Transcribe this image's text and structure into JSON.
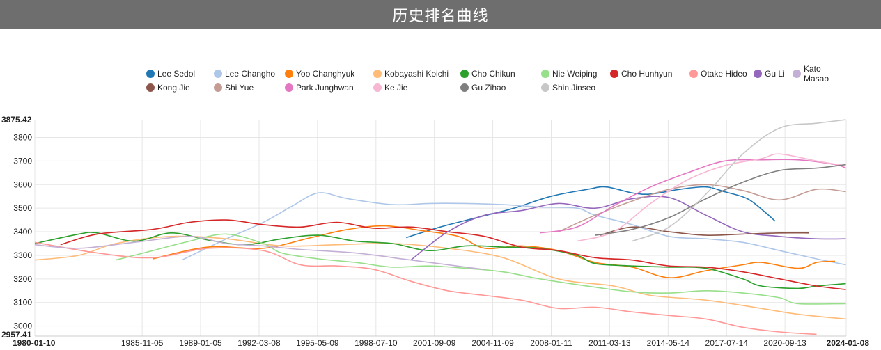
{
  "page": {
    "title": "历史排名曲线"
  },
  "chart_data": {
    "type": "line",
    "title": "历史排名曲线",
    "xlabel": "",
    "ylabel": "",
    "grid": true,
    "legend_position": "top",
    "x_start": "1980-01-10",
    "x_end": "2024-01-08",
    "x_ticks": [
      "1980-01-10",
      "1985-11-05",
      "1989-01-05",
      "1992-03-08",
      "1995-05-09",
      "1998-07-10",
      "2001-09-09",
      "2004-11-09",
      "2008-01-11",
      "2011-03-13",
      "2014-05-14",
      "2017-07-14",
      "2020-09-13",
      "2024-01-08"
    ],
    "y_ticks": [
      3000,
      3100,
      3200,
      3300,
      3400,
      3500,
      3600,
      3700,
      3800
    ],
    "y_min_label": "2957.41",
    "y_max_label": "3875.42",
    "ylim": [
      2957.41,
      3875.42
    ],
    "series": [
      {
        "name": "Lee Sedol",
        "color": "#1f77b4",
        "points": [
          [
            "2000-03-01",
            3375
          ],
          [
            "2002-01-01",
            3420
          ],
          [
            "2004-01-01",
            3460
          ],
          [
            "2006-01-01",
            3500
          ],
          [
            "2008-01-01",
            3550
          ],
          [
            "2010-01-01",
            3580
          ],
          [
            "2011-01-01",
            3590
          ],
          [
            "2012-06-01",
            3565
          ],
          [
            "2013-06-01",
            3560
          ],
          [
            "2015-01-01",
            3580
          ],
          [
            "2016-06-01",
            3590
          ],
          [
            "2017-06-01",
            3570
          ],
          [
            "2018-09-01",
            3540
          ],
          [
            "2019-09-01",
            3480
          ],
          [
            "2020-03-01",
            3445
          ]
        ]
      },
      {
        "name": "Lee Changho",
        "color": "#aec7e8",
        "points": [
          [
            "1988-01-01",
            3280
          ],
          [
            "1990-06-01",
            3370
          ],
          [
            "1992-06-01",
            3440
          ],
          [
            "1994-01-01",
            3510
          ],
          [
            "1995-06-01",
            3565
          ],
          [
            "1997-01-01",
            3540
          ],
          [
            "1999-06-01",
            3515
          ],
          [
            "2001-06-01",
            3520
          ],
          [
            "2003-06-01",
            3520
          ],
          [
            "2005-06-01",
            3515
          ],
          [
            "2007-06-01",
            3505
          ],
          [
            "2009-06-01",
            3500
          ],
          [
            "2010-06-01",
            3470
          ],
          [
            "2012-06-01",
            3430
          ],
          [
            "2014-06-01",
            3380
          ],
          [
            "2016-06-01",
            3370
          ],
          [
            "2018-06-01",
            3355
          ],
          [
            "2020-06-01",
            3320
          ],
          [
            "2022-06-01",
            3285
          ],
          [
            "2024-01-01",
            3260
          ]
        ]
      },
      {
        "name": "Yoo Changhyuk",
        "color": "#ff7f0e",
        "points": [
          [
            "1986-06-01",
            3285
          ],
          [
            "1989-06-01",
            3335
          ],
          [
            "1992-06-01",
            3330
          ],
          [
            "1995-01-01",
            3375
          ],
          [
            "1997-01-01",
            3410
          ],
          [
            "1999-01-01",
            3425
          ],
          [
            "2001-01-01",
            3405
          ],
          [
            "2003-01-01",
            3380
          ],
          [
            "2004-06-01",
            3330
          ],
          [
            "2006-06-01",
            3340
          ],
          [
            "2008-06-01",
            3320
          ],
          [
            "2010-06-01",
            3270
          ],
          [
            "2012-06-01",
            3250
          ],
          [
            "2014-06-01",
            3205
          ],
          [
            "2016-06-01",
            3235
          ],
          [
            "2018-06-01",
            3260
          ],
          [
            "2019-06-01",
            3270
          ],
          [
            "2021-06-01",
            3245
          ],
          [
            "2022-06-01",
            3270
          ],
          [
            "2023-06-01",
            3275
          ]
        ]
      },
      {
        "name": "Kobayashi Koichi",
        "color": "#ffbb78",
        "points": [
          [
            "1980-01-10",
            3280
          ],
          [
            "1982-06-01",
            3300
          ],
          [
            "1984-06-01",
            3350
          ],
          [
            "1987-06-01",
            3380
          ],
          [
            "1990-06-01",
            3370
          ],
          [
            "1993-06-01",
            3340
          ],
          [
            "1996-06-01",
            3345
          ],
          [
            "1999-06-01",
            3350
          ],
          [
            "2002-06-01",
            3330
          ],
          [
            "2005-06-01",
            3290
          ],
          [
            "2008-06-01",
            3200
          ],
          [
            "2011-06-01",
            3170
          ],
          [
            "2013-06-01",
            3130
          ],
          [
            "2016-06-01",
            3110
          ],
          [
            "2019-06-01",
            3075
          ],
          [
            "2021-06-01",
            3050
          ],
          [
            "2024-01-01",
            3030
          ]
        ]
      },
      {
        "name": "Cho Chikun",
        "color": "#2ca02c",
        "points": [
          [
            "1980-01-10",
            3350
          ],
          [
            "1982-06-01",
            3390
          ],
          [
            "1983-06-01",
            3395
          ],
          [
            "1985-06-01",
            3360
          ],
          [
            "1987-06-01",
            3395
          ],
          [
            "1989-06-01",
            3365
          ],
          [
            "1991-06-01",
            3345
          ],
          [
            "1993-06-01",
            3370
          ],
          [
            "1995-06-01",
            3385
          ],
          [
            "1997-06-01",
            3360
          ],
          [
            "1999-06-01",
            3350
          ],
          [
            "2001-06-01",
            3320
          ],
          [
            "2003-06-01",
            3340
          ],
          [
            "2005-06-01",
            3335
          ],
          [
            "2007-06-01",
            3330
          ],
          [
            "2009-06-01",
            3300
          ],
          [
            "2010-06-01",
            3265
          ],
          [
            "2012-06-01",
            3255
          ],
          [
            "2014-06-01",
            3250
          ],
          [
            "2016-06-01",
            3245
          ],
          [
            "2018-06-01",
            3200
          ],
          [
            "2019-06-01",
            3170
          ],
          [
            "2021-06-01",
            3160
          ],
          [
            "2022-06-01",
            3170
          ],
          [
            "2024-01-01",
            3180
          ]
        ]
      },
      {
        "name": "Nie Weiping",
        "color": "#98df8a",
        "points": [
          [
            "1984-06-01",
            3280
          ],
          [
            "1986-06-01",
            3320
          ],
          [
            "1988-06-01",
            3360
          ],
          [
            "1990-06-01",
            3390
          ],
          [
            "1992-06-01",
            3350
          ],
          [
            "1993-06-01",
            3310
          ],
          [
            "1995-06-01",
            3285
          ],
          [
            "1997-06-01",
            3270
          ],
          [
            "1999-06-01",
            3250
          ],
          [
            "2001-06-01",
            3255
          ],
          [
            "2003-06-01",
            3245
          ],
          [
            "2005-06-01",
            3230
          ],
          [
            "2007-06-01",
            3200
          ],
          [
            "2010-06-01",
            3165
          ],
          [
            "2012-06-01",
            3145
          ],
          [
            "2014-06-01",
            3140
          ],
          [
            "2016-06-01",
            3150
          ],
          [
            "2018-06-01",
            3140
          ],
          [
            "2020-06-01",
            3120
          ],
          [
            "2021-06-01",
            3095
          ],
          [
            "2024-01-01",
            3095
          ]
        ]
      },
      {
        "name": "Cho Hunhyun",
        "color": "#d62728",
        "points": [
          [
            "1981-06-01",
            3345
          ],
          [
            "1983-06-01",
            3390
          ],
          [
            "1986-06-01",
            3410
          ],
          [
            "1988-06-01",
            3440
          ],
          [
            "1990-06-01",
            3450
          ],
          [
            "1992-06-01",
            3430
          ],
          [
            "1994-06-01",
            3420
          ],
          [
            "1996-06-01",
            3440
          ],
          [
            "1998-06-01",
            3415
          ],
          [
            "2000-06-01",
            3420
          ],
          [
            "2002-06-01",
            3400
          ],
          [
            "2004-06-01",
            3380
          ],
          [
            "2006-06-01",
            3335
          ],
          [
            "2008-06-01",
            3320
          ],
          [
            "2010-06-01",
            3290
          ],
          [
            "2012-06-01",
            3280
          ],
          [
            "2014-06-01",
            3255
          ],
          [
            "2016-06-01",
            3250
          ],
          [
            "2018-06-01",
            3230
          ],
          [
            "2020-06-01",
            3200
          ],
          [
            "2022-06-01",
            3170
          ],
          [
            "2024-01-01",
            3155
          ]
        ]
      },
      {
        "name": "Otake Hideo",
        "color": "#ff9896",
        "points": [
          [
            "1980-01-10",
            3355
          ],
          [
            "1983-06-01",
            3310
          ],
          [
            "1986-06-01",
            3290
          ],
          [
            "1989-06-01",
            3330
          ],
          [
            "1992-06-01",
            3320
          ],
          [
            "1994-06-01",
            3260
          ],
          [
            "1996-06-01",
            3255
          ],
          [
            "1998-06-01",
            3240
          ],
          [
            "2000-06-01",
            3190
          ],
          [
            "2002-06-01",
            3150
          ],
          [
            "2004-06-01",
            3130
          ],
          [
            "2006-06-01",
            3110
          ],
          [
            "2008-06-01",
            3075
          ],
          [
            "2010-06-01",
            3080
          ],
          [
            "2012-06-01",
            3060
          ],
          [
            "2014-06-01",
            3045
          ],
          [
            "2016-06-01",
            3030
          ],
          [
            "2018-06-01",
            2995
          ],
          [
            "2020-06-01",
            2975
          ],
          [
            "2022-06-01",
            2965
          ]
        ]
      },
      {
        "name": "Gu Li",
        "color": "#9467bd",
        "points": [
          [
            "2000-06-01",
            3280
          ],
          [
            "2002-06-01",
            3400
          ],
          [
            "2004-06-01",
            3470
          ],
          [
            "2006-06-01",
            3490
          ],
          [
            "2008-06-01",
            3520
          ],
          [
            "2010-06-01",
            3500
          ],
          [
            "2012-06-01",
            3540
          ],
          [
            "2014-06-01",
            3545
          ],
          [
            "2016-06-01",
            3470
          ],
          [
            "2018-06-01",
            3400
          ],
          [
            "2020-06-01",
            3380
          ],
          [
            "2022-06-01",
            3370
          ],
          [
            "2024-01-01",
            3370
          ]
        ]
      },
      {
        "name": "Kato Masao",
        "color": "#c5b0d5",
        "points": [
          [
            "1980-01-10",
            3345
          ],
          [
            "1982-06-01",
            3330
          ],
          [
            "1985-06-01",
            3355
          ],
          [
            "1988-06-01",
            3380
          ],
          [
            "1990-06-01",
            3350
          ],
          [
            "1992-06-01",
            3340
          ],
          [
            "1994-06-01",
            3325
          ],
          [
            "1997-06-01",
            3310
          ],
          [
            "2000-06-01",
            3280
          ],
          [
            "2003-06-01",
            3250
          ],
          [
            "2004-06-01",
            3240
          ]
        ]
      },
      {
        "name": "Kong Jie",
        "color": "#8c564b",
        "points": [
          [
            "2010-09-01",
            3385
          ],
          [
            "2012-06-01",
            3420
          ],
          [
            "2014-06-01",
            3400
          ],
          [
            "2016-06-01",
            3385
          ],
          [
            "2018-06-01",
            3390
          ],
          [
            "2020-06-01",
            3395
          ],
          [
            "2022-01-01",
            3395
          ]
        ]
      },
      {
        "name": "Shi Yue",
        "color": "#c49c94",
        "points": [
          [
            "2008-06-01",
            3400
          ],
          [
            "2010-06-01",
            3470
          ],
          [
            "2012-06-01",
            3530
          ],
          [
            "2014-06-01",
            3580
          ],
          [
            "2016-06-01",
            3600
          ],
          [
            "2018-06-01",
            3575
          ],
          [
            "2020-06-01",
            3535
          ],
          [
            "2022-06-01",
            3580
          ],
          [
            "2024-01-01",
            3570
          ]
        ]
      },
      {
        "name": "Park Junghwan",
        "color": "#e377c2",
        "points": [
          [
            "2007-06-01",
            3395
          ],
          [
            "2009-06-01",
            3420
          ],
          [
            "2011-06-01",
            3510
          ],
          [
            "2013-06-01",
            3590
          ],
          [
            "2015-06-01",
            3650
          ],
          [
            "2017-06-01",
            3700
          ],
          [
            "2019-06-01",
            3705
          ],
          [
            "2021-06-01",
            3705
          ],
          [
            "2023-06-01",
            3685
          ],
          [
            "2024-01-01",
            3670
          ]
        ]
      },
      {
        "name": "Ke Jie",
        "color": "#f7b6d2",
        "points": [
          [
            "2009-06-01",
            3360
          ],
          [
            "2011-06-01",
            3400
          ],
          [
            "2013-06-01",
            3520
          ],
          [
            "2015-06-01",
            3620
          ],
          [
            "2017-06-01",
            3680
          ],
          [
            "2019-06-01",
            3710
          ],
          [
            "2020-06-01",
            3730
          ],
          [
            "2022-06-01",
            3700
          ],
          [
            "2024-01-01",
            3680
          ]
        ]
      },
      {
        "name": "Gu Zihao",
        "color": "#7f7f7f",
        "points": [
          [
            "2010-06-01",
            3385
          ],
          [
            "2012-06-01",
            3410
          ],
          [
            "2014-06-01",
            3460
          ],
          [
            "2016-06-01",
            3540
          ],
          [
            "2018-06-01",
            3610
          ],
          [
            "2020-06-01",
            3660
          ],
          [
            "2022-06-01",
            3670
          ],
          [
            "2024-01-01",
            3685
          ]
        ]
      },
      {
        "name": "Shin Jinseo",
        "color": "#c7c7c7",
        "points": [
          [
            "2012-06-01",
            3360
          ],
          [
            "2014-06-01",
            3420
          ],
          [
            "2016-06-01",
            3560
          ],
          [
            "2018-06-01",
            3730
          ],
          [
            "2020-06-01",
            3840
          ],
          [
            "2022-06-01",
            3860
          ],
          [
            "2024-01-01",
            3875
          ]
        ]
      }
    ]
  }
}
